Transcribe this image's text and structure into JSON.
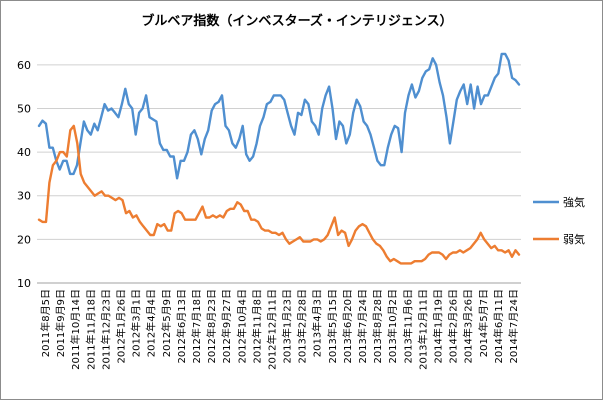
{
  "chart_data": {
    "type": "line",
    "title": "ブルベア指数（インベスターズ・インテリジェンス）",
    "ylim": [
      10,
      65
    ],
    "yticks": [
      10,
      20,
      30,
      40,
      50,
      60
    ],
    "grid": true,
    "legend_position": "right",
    "x_tick_labels": [
      "2011年8月5日",
      "2011年9月9日",
      "2011年10月14日",
      "2011年11月18日",
      "2011年12月23日",
      "2012年1月26日",
      "2012年3月1日",
      "2012年4月4日",
      "2012年5月9日",
      "2012年6月13日",
      "2012年7月18日",
      "2012年8月23日",
      "2012年9月27日",
      "2012年10月4日",
      "2012年11月8日",
      "2012年12月11日",
      "2013年1月23日",
      "2013年2月28日",
      "2013年4月3日",
      "2013年5月15日",
      "2013年6月20日",
      "2013年7月24日",
      "2013年8月28日",
      "2013年10月2日",
      "2013年11月6日",
      "2013年12月11日",
      "2014年1月19日",
      "2014年2月26日",
      "2014年3月26日",
      "2014年5月7日",
      "2014年6月11日",
      "2014年7月24日"
    ],
    "series": [
      {
        "name": "強気",
        "color": "#4f8fd0",
        "values": [
          46,
          47.2,
          46.5,
          41,
          41,
          38,
          36,
          38,
          38,
          35,
          35,
          37,
          42,
          47,
          45,
          44,
          46.5,
          45,
          48,
          51,
          49.5,
          50,
          49,
          48,
          51,
          54.5,
          51,
          50,
          44,
          49,
          50,
          53,
          48,
          47.5,
          47,
          42,
          40.5,
          40.5,
          39,
          39,
          34,
          38,
          38,
          40,
          44,
          45,
          43,
          39.5,
          43,
          45,
          49.5,
          51,
          51.5,
          53,
          46,
          45,
          42,
          41,
          43,
          46,
          39.5,
          38,
          39,
          42,
          46,
          48,
          51,
          51.5,
          53,
          53,
          53,
          52,
          49,
          46,
          44,
          49,
          48.5,
          52,
          51,
          47,
          46,
          44,
          50,
          53,
          55,
          50,
          43,
          47,
          46,
          42,
          44,
          49,
          52,
          50.5,
          47,
          46,
          44,
          41,
          38,
          37,
          37,
          41,
          44,
          46,
          45.5,
          40,
          49,
          53,
          55.5,
          52.5,
          54,
          57,
          58.5,
          59,
          61.5,
          60,
          56,
          53,
          48,
          42,
          47,
          52,
          54,
          55.5,
          51,
          55.5,
          50,
          55,
          51,
          53,
          53,
          55,
          57,
          58,
          62.5,
          62.5,
          61,
          57,
          56.5,
          55.5
        ]
      },
      {
        "name": "弱気",
        "color": "#ed7d31",
        "values": [
          24.5,
          24,
          24,
          33,
          37,
          38,
          40,
          40,
          39,
          45,
          46,
          42,
          35,
          33,
          32,
          31,
          30,
          30.5,
          31,
          30,
          30,
          29.5,
          29,
          29.5,
          29,
          26,
          26.5,
          25,
          25.5,
          24,
          23,
          22,
          21,
          21,
          23.5,
          23,
          23.5,
          22,
          22,
          26,
          26.5,
          26,
          24.5,
          24.5,
          24.5,
          24.5,
          26,
          27.5,
          25,
          25,
          25.5,
          25,
          25.5,
          25,
          26.5,
          27,
          27,
          28.5,
          28,
          26.5,
          26.5,
          24.5,
          24.5,
          24,
          22.5,
          22,
          22,
          21.5,
          21.5,
          21,
          21.5,
          20,
          19,
          19.5,
          20,
          20.5,
          19.5,
          19.5,
          19.5,
          20,
          20,
          19.5,
          20,
          21,
          23,
          25,
          21,
          22,
          21.5,
          18.5,
          20,
          22,
          23,
          23.5,
          23,
          21.5,
          20,
          19,
          18.5,
          17.5,
          16,
          15,
          15.5,
          15,
          14.5,
          14.5,
          14.5,
          14.5,
          15,
          15,
          15,
          15.5,
          16.5,
          17,
          17,
          17,
          16.5,
          15.5,
          16.5,
          17,
          17,
          17.5,
          17,
          17.5,
          18,
          19,
          20,
          21.5,
          20,
          19,
          18,
          18.5,
          17.5,
          17.5,
          17,
          17.5,
          16,
          17.5,
          16.5
        ]
      }
    ]
  }
}
